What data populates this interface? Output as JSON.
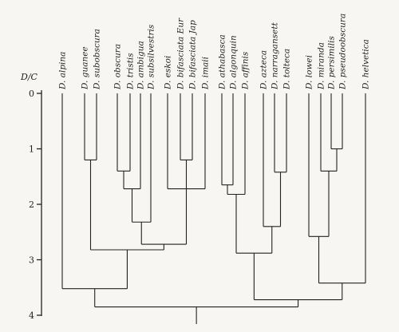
{
  "axis": {
    "title": "D/C",
    "ticks": [
      "0",
      "1",
      "2",
      "3",
      "4"
    ],
    "range": [
      0,
      4
    ]
  },
  "taxa": [
    "D. alpina",
    "D. guanee",
    "D. subobscura",
    "D. obscura",
    "D. tristis",
    "D. ambigua",
    "D. subsilvestris",
    "D. eskoi",
    "D. bifasciata Eur",
    "D. bifasciata Jap",
    "D. imaii",
    "D. athabasca",
    "D. algonquin",
    "D. affinis",
    "D. azteca",
    "D. narragansett",
    "D. tolteca",
    "D. lowei",
    "D. miranda",
    "D. persimilis",
    "D. pseudoobscura",
    "D. helvetica"
  ],
  "tree": {
    "h": 3.85,
    "c": [
      {
        "h": 3.52,
        "c": [
          {
            "t": 0
          },
          {
            "h": 2.82,
            "c": [
              {
                "h": 1.2,
                "c": [
                  {
                    "t": 1
                  },
                  {
                    "t": 2
                  }
                ]
              },
              {
                "h": 2.72,
                "c": [
                  {
                    "h": 2.32,
                    "c": [
                      {
                        "h": 1.72,
                        "c": [
                          {
                            "h": 1.4,
                            "c": [
                              {
                                "t": 3
                              },
                              {
                                "t": 4
                              }
                            ]
                          },
                          {
                            "t": 5
                          }
                        ]
                      },
                      {
                        "t": 6
                      }
                    ]
                  },
                  {
                    "h": 1.72,
                    "c": [
                      {
                        "t": 7
                      },
                      {
                        "h": 1.2,
                        "c": [
                          {
                            "t": 8
                          },
                          {
                            "t": 9
                          }
                        ]
                      },
                      {
                        "t": 10
                      }
                    ]
                  }
                ]
              }
            ]
          }
        ]
      },
      {
        "h": 3.72,
        "c": [
          {
            "h": 2.88,
            "c": [
              {
                "h": 1.82,
                "c": [
                  {
                    "h": 1.65,
                    "c": [
                      {
                        "t": 11
                      },
                      {
                        "t": 12
                      }
                    ]
                  },
                  {
                    "t": 13
                  }
                ]
              },
              {
                "h": 2.4,
                "c": [
                  {
                    "t": 14
                  },
                  {
                    "h": 1.42,
                    "c": [
                      {
                        "t": 15
                      },
                      {
                        "t": 16
                      }
                    ]
                  }
                ]
              }
            ]
          },
          {
            "h": 3.42,
            "c": [
              {
                "h": 2.58,
                "c": [
                  {
                    "t": 17
                  },
                  {
                    "h": 1.4,
                    "c": [
                      {
                        "t": 18
                      },
                      {
                        "h": 1.0,
                        "c": [
                          {
                            "t": 19
                          },
                          {
                            "t": 20
                          }
                        ]
                      }
                    ]
                  }
                ]
              },
              {
                "t": 21
              }
            ]
          }
        ]
      }
    ]
  }
}
